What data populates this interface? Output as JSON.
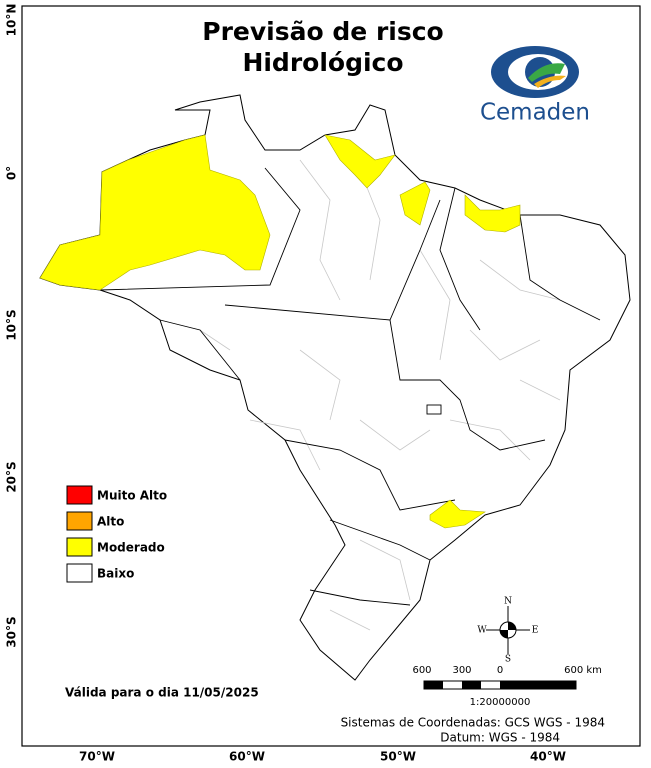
{
  "header": {
    "title_lines": [
      "Previsão de risco",
      "Hidrológico"
    ],
    "logo_text": "Cemaden"
  },
  "legend": {
    "items": [
      {
        "label": "Muito Alto",
        "color": "#ff0000"
      },
      {
        "label": "Alto",
        "color": "#ffa500"
      },
      {
        "label": "Moderado",
        "color": "#ffff00"
      },
      {
        "label": "Baixo",
        "color": "#ffffff"
      }
    ]
  },
  "axes": {
    "lat_labels": [
      "10°N",
      "0°",
      "10°S",
      "20°S",
      "30°S"
    ],
    "lon_labels": [
      "70°W",
      "60°W",
      "50°W",
      "40°W"
    ]
  },
  "compass": {
    "n": "N",
    "s": "S",
    "e": "E",
    "w": "W"
  },
  "scale_bar": {
    "labels": [
      "600",
      "300",
      "0",
      "600 km"
    ],
    "ratio": "1:20000000"
  },
  "validity": "Válida para o dia 11/05/2025",
  "footer": {
    "coordinates": "Sistemas de Coordenadas: GCS WGS - 1984",
    "datum": "Datum: WGS - 1984"
  }
}
